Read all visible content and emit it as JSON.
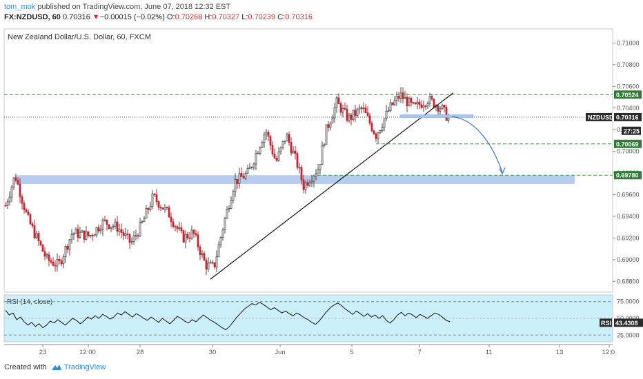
{
  "header": {
    "publisher": "tom_mok",
    "published_text": "published on TradingView.com, June 07, 2018 12:32 EST",
    "symbol": "FX:NZDUSD, 60",
    "last": "0.70316",
    "change_arrow": "▼",
    "change": "−0.00015 (−0.02%)",
    "o_label": "O:",
    "o": "0.70268",
    "h_label": "H:",
    "h": "0.70327",
    "l_label": "L:",
    "l": "0.70239",
    "c_label": "C:",
    "c": "0.70316"
  },
  "footer": {
    "created_with": "Created with",
    "brand": "TradingView"
  },
  "colors": {
    "up": "#4a4a4a",
    "down": "#c2262e",
    "support_dash": "#3d9a3d",
    "zone": "#a9c4ec",
    "rsi_bg": "#ccf0fb",
    "arrow": "#3a6fd8",
    "level_label_bg": "#2e7d32"
  },
  "chart_data": {
    "type": "candlestick",
    "title": "New Zealand Dollar/U.S. Dollar, 60, FXCM",
    "price_axis": {
      "ticks": [
        "0.71000",
        "0.70800",
        "0.70600",
        "0.70400",
        "0.70200",
        "0.70000",
        "0.69800",
        "0.69600",
        "0.69400",
        "0.69200",
        "0.69000",
        "0.68800"
      ],
      "range": [
        0.687,
        0.7113
      ]
    },
    "x_axis": {
      "ticks": [
        "23",
        "12:00",
        "28",
        "30",
        "Jun",
        "5",
        "7",
        "11",
        "13",
        "12:0"
      ]
    },
    "price_labels": [
      {
        "text": "0.70524",
        "value": 0.70524,
        "style": "green"
      },
      {
        "text": "NZDUSD",
        "value": 0.70316,
        "style": "dark"
      },
      {
        "text": "0.70316",
        "value": 0.70316,
        "style": "dark"
      },
      {
        "text": "27:25",
        "value": 0.7019,
        "style": "dark"
      },
      {
        "text": "0.70069",
        "value": 0.70069,
        "style": "green"
      },
      {
        "text": "0.69780",
        "value": 0.6978,
        "style": "green"
      }
    ],
    "horizontal_levels": [
      0.70524,
      0.70069,
      0.6978
    ],
    "current_price": 0.70316,
    "support_zone": [
      0.697,
      0.6978
    ],
    "trendline": {
      "from": [
        "30",
        0.6882
      ],
      "to": [
        "7",
        0.7054
      ]
    },
    "projection_target": 0.6978,
    "rsi": {
      "label": "RSI (14, close)",
      "ticks": [
        "75.0000",
        "50.0000",
        "25.0000"
      ],
      "value_label": "RSI",
      "value": "43.4308",
      "series": [
        62,
        55,
        58,
        48,
        52,
        45,
        40,
        44,
        38,
        42,
        36,
        40,
        46,
        43,
        48,
        44,
        40,
        45,
        50,
        47,
        42,
        46,
        52,
        49,
        54,
        50,
        56,
        53,
        49,
        52,
        58,
        55,
        60,
        56,
        52,
        57,
        54,
        50,
        47,
        52,
        48,
        44,
        50,
        46,
        42,
        47,
        53,
        50,
        46,
        43,
        48,
        45,
        50,
        55,
        51,
        47,
        44,
        40,
        36,
        33,
        38,
        45,
        52,
        58,
        64,
        68,
        72,
        70,
        74,
        71,
        67,
        63,
        66,
        62,
        58,
        61,
        57,
        54,
        58,
        55,
        51,
        48,
        44,
        41,
        46,
        53,
        60,
        66,
        70,
        73,
        69,
        64,
        60,
        56,
        61,
        57,
        53,
        57,
        52,
        55,
        50,
        54,
        47,
        43,
        48,
        55,
        59,
        54,
        58,
        55,
        51,
        56,
        53,
        50,
        54,
        58,
        56,
        52,
        47,
        45
      ]
    }
  }
}
